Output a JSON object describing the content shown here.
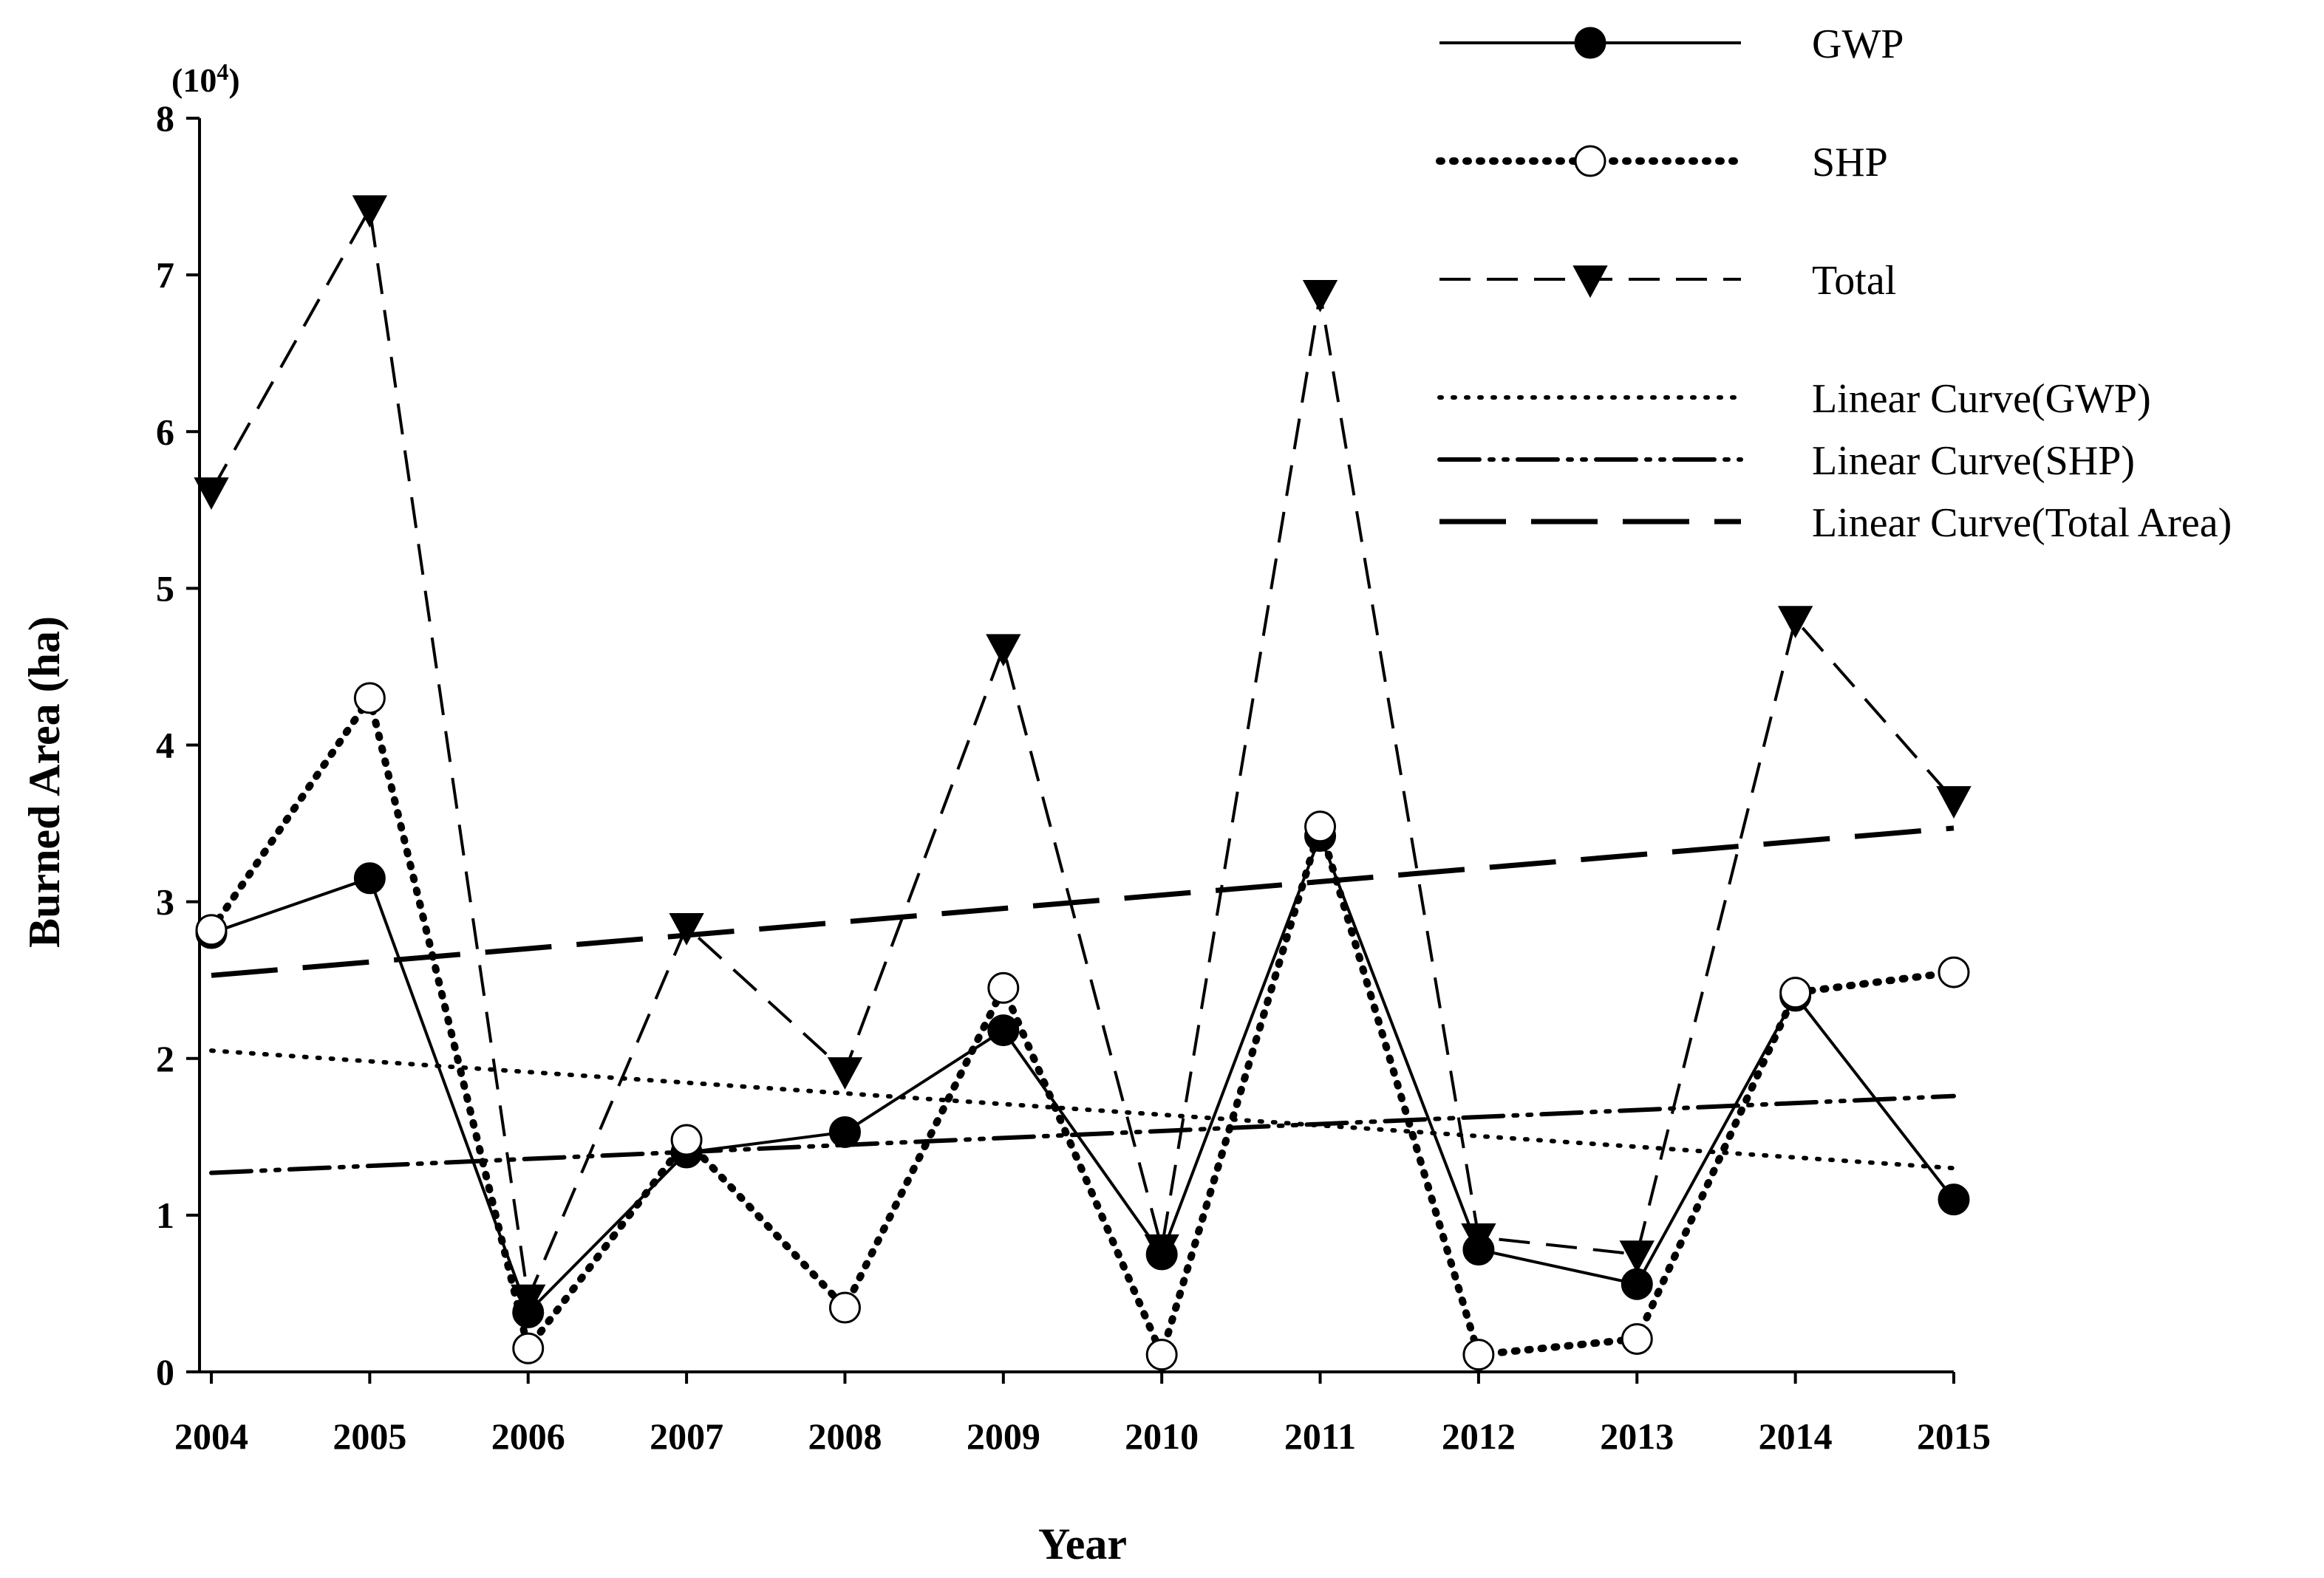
{
  "chart_data": {
    "type": "line",
    "title": "",
    "xlabel": "Year",
    "ylabel": "Burned Area (ha)",
    "y_multiplier": "(10",
    "y_multiplier_exp": "4",
    "y_multiplier_close": ")",
    "xlim": [
      2004,
      2015
    ],
    "ylim": [
      0,
      8
    ],
    "x": [
      2004,
      2005,
      2006,
      2007,
      2008,
      2009,
      2010,
      2011,
      2012,
      2013,
      2014,
      2015
    ],
    "x_tick_labels": [
      "2004",
      "2005",
      "2006",
      "2007",
      "2008",
      "2009",
      "2010",
      "2011",
      "2012",
      "2013",
      "2014",
      "2015"
    ],
    "y_ticks": [
      0,
      1,
      2,
      3,
      4,
      5,
      6,
      7,
      8
    ],
    "y_tick_labels": [
      "0",
      "1",
      "2",
      "3",
      "4",
      "5",
      "6",
      "7",
      "8"
    ],
    "series": [
      {
        "name": "GWP",
        "legend": "GWP",
        "style": "solid",
        "marker": "filled-circle",
        "values": [
          2.8,
          3.15,
          0.38,
          1.4,
          1.53,
          2.18,
          0.75,
          3.42,
          0.78,
          0.56,
          2.4,
          1.1
        ]
      },
      {
        "name": "SHP",
        "legend": "SHP",
        "style": "dotted",
        "marker": "open-circle",
        "values": [
          2.82,
          4.3,
          0.15,
          1.48,
          0.41,
          2.45,
          0.11,
          3.48,
          0.11,
          0.21,
          2.42,
          2.55
        ]
      },
      {
        "name": "Total",
        "legend": "Total",
        "style": "dashed",
        "marker": "down-triangle",
        "values": [
          5.62,
          7.42,
          0.47,
          2.84,
          1.92,
          4.62,
          0.79,
          6.88,
          0.86,
          0.75,
          4.8,
          3.65
        ]
      }
    ],
    "trendlines": [
      {
        "name": "Linear Curve(GWP)",
        "legend": "Linear Curve(GWP)",
        "style": "dotted",
        "start": 2.05,
        "end": 1.3
      },
      {
        "name": "Linear Curve(SHP)",
        "legend": "Linear Curve(SHP)",
        "style": "dash-dot-dot",
        "start": 1.27,
        "end": 1.76
      },
      {
        "name": "Linear Curve(Total Area)",
        "legend": "Linear Curve(Total Area)",
        "style": "long-dash",
        "start": 2.53,
        "end": 3.47
      }
    ],
    "legend_position": "top-right",
    "grid": false
  }
}
